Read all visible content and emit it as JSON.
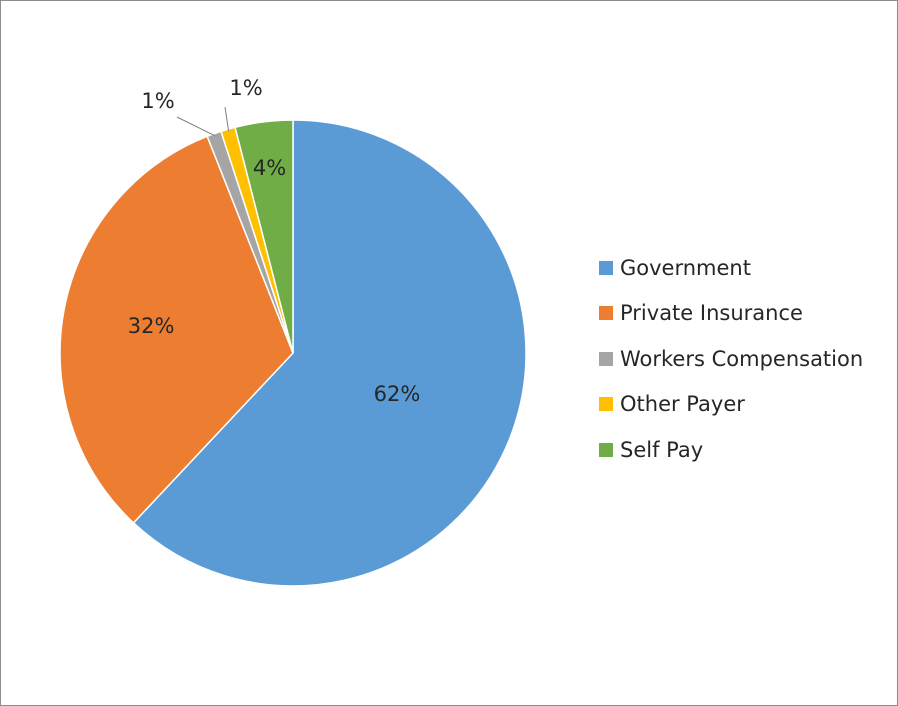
{
  "chart_data": {
    "type": "pie",
    "title": "",
    "legend_position": "right",
    "slices": [
      {
        "name": "Government",
        "value": 62,
        "label": "62%",
        "color": "#5B9BD5"
      },
      {
        "name": "Private Insurance",
        "value": 32,
        "label": "32%",
        "color": "#ED7D31"
      },
      {
        "name": "Workers Compensation",
        "value": 1,
        "label": "1%",
        "color": "#A5A5A5"
      },
      {
        "name": "Other Payer",
        "value": 1,
        "label": "1%",
        "color": "#FFC000"
      },
      {
        "name": "Self Pay",
        "value": 4,
        "label": "4%",
        "color": "#70AD47"
      }
    ]
  }
}
